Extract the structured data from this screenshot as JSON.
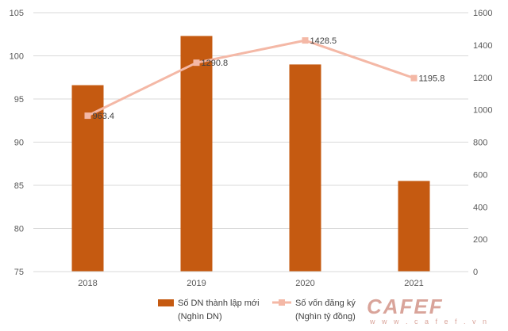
{
  "chart_data": {
    "type": "bar+line",
    "categories": [
      "2018",
      "2019",
      "2020",
      "2021"
    ],
    "series": [
      {
        "name": "Số DN thành lập mới (Nghìn DN)",
        "legend_lines": [
          "Số DN thành lập mới",
          "(Nghìn DN)"
        ],
        "type": "bar",
        "axis": "left",
        "values": [
          96.6,
          102.3,
          99.0,
          85.5
        ],
        "color": "#c55a11"
      },
      {
        "name": "Số vốn đăng ký (Nghìn tỷ đồng)",
        "legend_lines": [
          "Số vốn đăng ký",
          "(Nghìn tỷ đồng)"
        ],
        "type": "line",
        "axis": "right",
        "values": [
          963.4,
          1290.8,
          1428.5,
          1195.8
        ],
        "labels": [
          "963.4",
          "1290.8",
          "1428.5",
          "1195.8"
        ],
        "color": "#f4b8a6"
      }
    ],
    "y_left": {
      "min": 75,
      "max": 105,
      "ticks": [
        75,
        80,
        85,
        90,
        95,
        100,
        105
      ]
    },
    "y_right": {
      "min": 0,
      "max": 1600,
      "ticks": [
        0,
        200,
        400,
        600,
        800,
        1000,
        1200,
        1400,
        1600
      ]
    },
    "grid": true,
    "legend_position": "bottom"
  },
  "watermark": {
    "main": "CAFEF",
    "sub": "w w w . c a f e f . v n"
  }
}
